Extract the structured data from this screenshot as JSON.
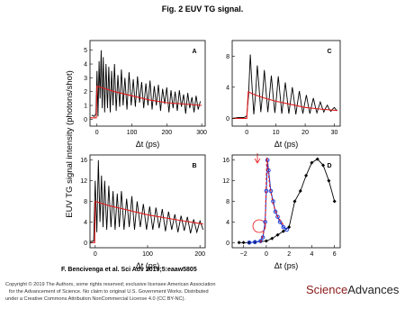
{
  "title": "Fig. 2 EUV TG signal.",
  "ylabel": "EUV TG signal intensity (photons/shot)",
  "citation": "F. Bencivenga et al. Sci Adv 2019;5:eaaw5805",
  "copyright": [
    "Copyright © 2019 The Authors, some rights reserved; exclusive licensee American Association",
    "for the Advancement of Science. No claim to original U.S. Government Works. Distributed",
    "under a Creative Commons Attribution NonCommercial License 4.0 (CC BY-NC)."
  ],
  "logo": [
    "Science",
    "Advances"
  ],
  "chart_data": [
    {
      "type": "line",
      "label": "A",
      "xlabel": "Δt (ps)",
      "xlim": [
        -20,
        310
      ],
      "ylim": [
        -0.5,
        5.7
      ],
      "xticks": [
        0,
        100,
        200,
        300
      ],
      "yticks": [
        0,
        1,
        2,
        3,
        4,
        5
      ],
      "series": [
        {
          "color": "#000000",
          "x": [
            -15,
            -8,
            -3,
            0,
            3,
            6,
            9,
            12,
            15,
            18,
            22,
            26,
            30,
            34,
            38,
            42,
            46,
            50,
            55,
            60,
            65,
            70,
            75,
            80,
            86,
            92,
            98,
            104,
            110,
            116,
            122,
            128,
            134,
            140,
            146,
            152,
            158,
            164,
            170,
            176,
            182,
            188,
            194,
            200,
            206,
            212,
            218,
            224,
            230,
            236,
            242,
            248,
            254,
            260,
            266,
            272,
            278,
            284,
            290,
            296
          ],
          "values": [
            0.3,
            0.2,
            0.4,
            3.5,
            0.2,
            4.2,
            1.5,
            5.0,
            0.8,
            4.5,
            0.5,
            4.0,
            0.8,
            3.8,
            0.5,
            3.5,
            1.0,
            4.0,
            0.6,
            3.2,
            0.9,
            3.6,
            1.0,
            3.0,
            0.7,
            3.4,
            1.0,
            2.9,
            0.9,
            3.1,
            1.2,
            2.7,
            0.8,
            2.6,
            1.0,
            2.8,
            0.7,
            2.4,
            1.0,
            2.5,
            0.6,
            2.2,
            1.1,
            2.3,
            0.5,
            2.1,
            0.8,
            2.0,
            0.6,
            2.1,
            0.9,
            1.8,
            0.4,
            1.9,
            0.8,
            1.6,
            0.5,
            1.7,
            0.7,
            1.3
          ]
        },
        {
          "color": "#e41a1c",
          "x": [
            -20,
            -2,
            0,
            50,
            100,
            150,
            200,
            250,
            300
          ],
          "values": [
            0.1,
            0.1,
            2.4,
            2.0,
            1.7,
            1.4,
            1.2,
            1.1,
            1.0
          ]
        }
      ]
    },
    {
      "type": "line",
      "label": "C",
      "xlabel": "Δt (ps)",
      "xlim": [
        -5,
        32
      ],
      "ylim": [
        -1,
        10
      ],
      "xticks": [
        0,
        10,
        20,
        30
      ],
      "yticks": [
        0,
        4,
        8
      ],
      "series": [
        {
          "color": "#000000",
          "x": [
            -5,
            -3,
            -1,
            0,
            0.6,
            1.2,
            1.8,
            2.4,
            3.0,
            3.6,
            4.2,
            4.8,
            5.4,
            6.0,
            6.6,
            7.2,
            7.8,
            8.4,
            9.0,
            9.6,
            10.2,
            10.8,
            11.4,
            12.0,
            12.6,
            13.2,
            13.8,
            14.4,
            15.0,
            15.6,
            16.2,
            16.8,
            17.4,
            18.0,
            18.6,
            19.2,
            19.8,
            20.4,
            21.0,
            21.6,
            22.2,
            22.8,
            23.4,
            24.0,
            24.6,
            25.2,
            25.8,
            26.4,
            27,
            27.6,
            28.2,
            28.8,
            29.4,
            30,
            30.6,
            31
          ],
          "values": [
            0,
            0.1,
            0.1,
            0.3,
            3,
            8.2,
            4,
            0.5,
            3,
            6.8,
            4,
            0.8,
            3,
            6.2,
            3.5,
            0.8,
            3,
            5.5,
            3,
            0.7,
            2.8,
            5.4,
            3,
            0.6,
            2.5,
            4.6,
            2.6,
            0.6,
            2.3,
            4.0,
            2.3,
            0.5,
            2,
            3.5,
            2,
            0.6,
            1.8,
            3.0,
            1.8,
            0.6,
            1.6,
            2.6,
            1.6,
            0.7,
            1.4,
            2.1,
            1.4,
            0.8,
            1.3,
            1.7,
            1.2,
            0.9,
            1.2,
            1.4,
            1.1,
            1.0
          ]
        },
        {
          "color": "#e41a1c",
          "x": [
            -5,
            0,
            0.5,
            3,
            6,
            10,
            15,
            20,
            25,
            31
          ],
          "values": [
            0,
            0,
            3.4,
            3.0,
            2.6,
            2.2,
            1.8,
            1.4,
            1.2,
            1.0
          ]
        }
      ]
    },
    {
      "type": "line",
      "label": "B",
      "xlabel": "Δt (ps)",
      "xlim": [
        -10,
        210
      ],
      "ylim": [
        -1,
        17
      ],
      "xticks": [
        0,
        100,
        200
      ],
      "yticks": [
        0,
        4,
        8,
        12,
        16
      ],
      "series": [
        {
          "color": "#000000",
          "x": [
            -10,
            -3,
            0,
            3,
            6,
            9,
            12,
            15,
            18,
            22,
            26,
            30,
            34,
            38,
            42,
            46,
            50,
            55,
            60,
            65,
            70,
            75,
            80,
            86,
            92,
            98,
            104,
            110,
            116,
            122,
            128,
            134,
            140,
            146,
            152,
            158,
            164,
            170,
            176,
            182,
            188,
            194,
            200,
            206
          ],
          "values": [
            0.2,
            0.3,
            12,
            2,
            16,
            4,
            13,
            3,
            12,
            2.5,
            11,
            3,
            10,
            2.5,
            9.5,
            3,
            10,
            2.5,
            8.5,
            3,
            9,
            2.5,
            8,
            3,
            7.5,
            2.5,
            7,
            2.5,
            6.8,
            2.8,
            6.5,
            2.2,
            6,
            2.5,
            5.5,
            2,
            5.2,
            2.3,
            5,
            1.8,
            4.5,
            2,
            4.2,
            2.5
          ]
        },
        {
          "color": "#e41a1c",
          "x": [
            -10,
            -1,
            0,
            25,
            50,
            100,
            150,
            206
          ],
          "values": [
            0,
            0,
            8,
            7.2,
            6.6,
            5.4,
            4.5,
            3.6
          ]
        }
      ]
    },
    {
      "type": "line",
      "label": "D",
      "xlabel": "Δt (ps)",
      "xlim": [
        -3,
        6.5
      ],
      "ylim": [
        -1,
        17
      ],
      "xticks": [
        {
          "value": -2,
          "label": "−2"
        },
        0,
        2,
        4,
        6
      ],
      "yticks": [
        0,
        4,
        8,
        12,
        16
      ],
      "series": [
        {
          "color": "#000000",
          "marker": "diamond",
          "x": [
            -2.4,
            -2,
            -1.5,
            -1,
            -0.5,
            0,
            0.5,
            1,
            1.5,
            2,
            2.5,
            3,
            3.5,
            4,
            4.5,
            5,
            5.5,
            6
          ],
          "values": [
            0,
            0,
            0,
            0.1,
            0.2,
            0.3,
            0.8,
            1.5,
            2.2,
            3,
            8,
            10,
            13,
            15.5,
            16.2,
            15,
            12,
            8
          ]
        },
        {
          "color": "#1f3fd6",
          "marker": "circle",
          "x": [
            -1.5,
            -1,
            -0.5,
            -0.3,
            -0.1,
            0,
            0.1,
            0.2,
            0.4,
            0.6,
            0.8,
            1.0,
            1.2,
            1.5,
            1.8
          ],
          "values": [
            0,
            0.1,
            0.3,
            1,
            4,
            10,
            16,
            14,
            10,
            8,
            6,
            5,
            4,
            3,
            2.5
          ]
        },
        {
          "color": "#e41a1c",
          "dash": true,
          "x": [
            -0.5,
            -0.1,
            0.05,
            0.3,
            0.6,
            1,
            1.5
          ],
          "values": [
            0,
            3,
            16.5,
            11,
            7.5,
            5,
            3.5
          ]
        }
      ]
    }
  ]
}
